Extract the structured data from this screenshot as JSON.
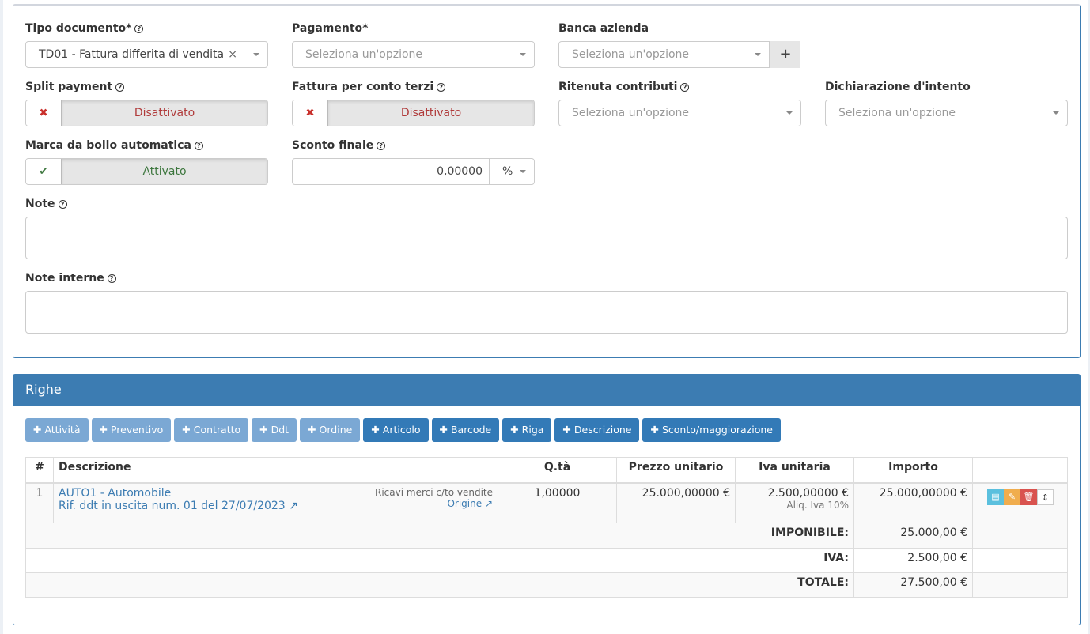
{
  "form": {
    "tipo_documento": {
      "label": "Tipo documento*",
      "value": "TD01 - Fattura differita di vendita"
    },
    "pagamento": {
      "label": "Pagamento*",
      "placeholder": "Seleziona un'opzione"
    },
    "banca": {
      "label": "Banca azienda",
      "placeholder": "Seleziona un'opzione"
    },
    "split": {
      "label": "Split payment",
      "state": "Disattivato"
    },
    "conto_terzi": {
      "label": "Fattura per conto terzi",
      "state": "Disattivato"
    },
    "ritenuta": {
      "label": "Ritenuta contributi",
      "placeholder": "Seleziona un'opzione"
    },
    "intento": {
      "label": "Dichiarazione d'intento",
      "placeholder": "Seleziona un'opzione"
    },
    "bollo": {
      "label": "Marca da bollo automatica",
      "state": "Attivato"
    },
    "sconto": {
      "label": "Sconto finale",
      "value": "0,00000",
      "unit": "%"
    },
    "note": {
      "label": "Note"
    },
    "note_interne": {
      "label": "Note interne"
    }
  },
  "righe": {
    "title": "Righe",
    "buttons": [
      "Attività",
      "Preventivo",
      "Contratto",
      "Ddt",
      "Ordine",
      "Articolo",
      "Barcode",
      "Riga",
      "Descrizione",
      "Sconto/maggiorazione"
    ],
    "headers": [
      "#",
      "Descrizione",
      "Q.tà",
      "Prezzo unitario",
      "Iva unitaria",
      "Importo"
    ],
    "row": {
      "n": "1",
      "desc": "AUTO1 - Automobile",
      "ref": "Rif. ddt in uscita num. 01 del 27/07/2023",
      "conto": "Ricavi merci c/to vendite",
      "origine": "Origine",
      "qta": "1,00000",
      "prezzo": "25.000,00000 €",
      "iva": "2.500,00000 €",
      "aliq": "Aliq. Iva 10%",
      "importo": "25.000,00000 €"
    },
    "totals": [
      {
        "label": "IMPONIBILE:",
        "value": "25.000,00 €"
      },
      {
        "label": "IVA:",
        "value": "2.500,00 €"
      },
      {
        "label": "TOTALE:",
        "value": "27.500,00 €"
      }
    ]
  }
}
